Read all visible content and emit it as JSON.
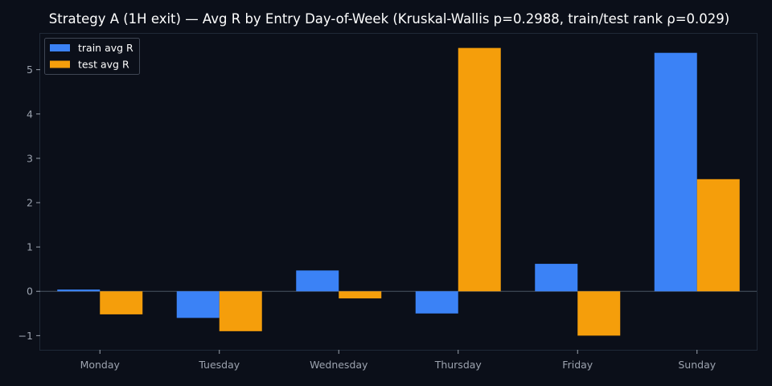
{
  "chart_data": {
    "type": "bar",
    "title": "Strategy A (1H exit) — Avg R by Entry Day-of-Week (Kruskal-Wallis p=0.2988, train/test rank ρ=0.029)",
    "xlabel": "",
    "ylabel": "",
    "categories": [
      "Monday",
      "Tuesday",
      "Wednesday",
      "Thursday",
      "Friday",
      "Sunday"
    ],
    "series": [
      {
        "name": "train avg R",
        "color": "#3b82f6",
        "values": [
          0.04,
          -0.6,
          0.47,
          -0.5,
          0.62,
          5.38
        ]
      },
      {
        "name": "test avg R",
        "color": "#f59e0b",
        "values": [
          -0.52,
          -0.9,
          -0.16,
          5.49,
          -1.0,
          2.53
        ]
      }
    ],
    "ylim": [
      -1.32,
      5.81
    ],
    "yticks": [
      -1,
      0,
      1,
      2,
      3,
      4,
      5
    ],
    "ytick_labels": [
      "−1",
      "0",
      "1",
      "2",
      "3",
      "4",
      "5"
    ],
    "legend_position": "top-left",
    "grid": false,
    "colors": {
      "background": "#0b0f19",
      "axes_edge": "#1f2937",
      "zero_line": "#4b5563",
      "tick_text": "#9ca3af",
      "title_text": "#ffffff"
    }
  }
}
